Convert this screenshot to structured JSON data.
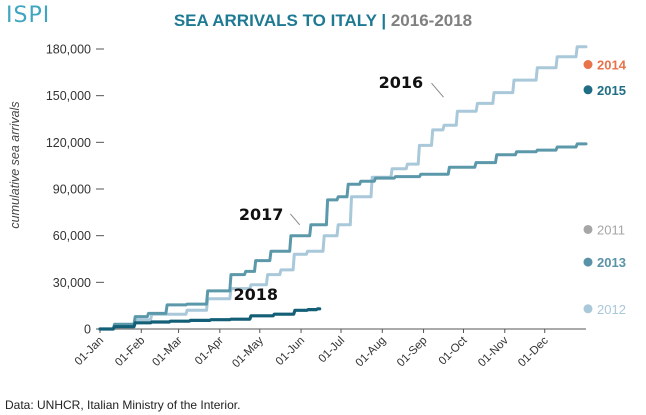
{
  "logo": "ISPI",
  "title": {
    "main": "SEA ARRIVALS TO ITALY",
    "separator": "|",
    "sub": "2016-2018"
  },
  "source": "Data: UNHCR, Italian Ministry of the Interior.",
  "colors": {
    "y2016": "#a9c8da",
    "y2017": "#5b98aa",
    "y2018": "#135f77",
    "legend2014": "#e8734a",
    "legend2015": "#1f6e85",
    "legend2011": "#a6a6a6",
    "legend2013": "#5a93a8",
    "legend2012": "#a9c8da",
    "axis": "#555555",
    "grid": "#dddddd"
  },
  "chart_data": {
    "type": "line",
    "title": "SEA ARRIVALS TO ITALY | 2016-2018",
    "xlabel": "",
    "ylabel": "cumulative sea arrivals",
    "x_tick_labels": [
      "01-Jan",
      "01-Feb",
      "01-Mar",
      "01-Apr",
      "01-May",
      "01-Jun",
      "01-Jul",
      "01-Aug",
      "01-Sep",
      "01-Oct",
      "01-Nov",
      "01-Dec"
    ],
    "ylim": [
      0,
      180000
    ],
    "y_ticks": [
      0,
      30000,
      60000,
      90000,
      120000,
      150000,
      180000
    ],
    "y_tick_labels": [
      "0",
      "30,000",
      "60,000",
      "90,000",
      "120,000",
      "150,000",
      "180,000"
    ],
    "grid": false,
    "series": [
      {
        "name": "2016",
        "label": "2016",
        "x": [
          0,
          20,
          31,
          45,
          59,
          70,
          90,
          105,
          120,
          130,
          140,
          150,
          160,
          175,
          181,
          195,
          212,
          225,
          235,
          243,
          255,
          260,
          275,
          290,
          300,
          320,
          335,
          350,
          365
        ],
        "y": [
          0,
          2000,
          6000,
          9500,
          9500,
          12000,
          19500,
          26000,
          28500,
          35000,
          38000,
          48000,
          50000,
          60000,
          67000,
          85000,
          97500,
          103000,
          106000,
          118000,
          128000,
          131000,
          140000,
          145000,
          152000,
          160000,
          168000,
          175000,
          181500
        ]
      },
      {
        "name": "2017",
        "label": "2017",
        "x": [
          0,
          20,
          31,
          40,
          59,
          70,
          90,
          105,
          112,
          120,
          135,
          150,
          165,
          175,
          181,
          190,
          200,
          212,
          230,
          250,
          273,
          290,
          304,
          320,
          335,
          350,
          365
        ],
        "y": [
          0,
          3000,
          8000,
          10000,
          15500,
          16000,
          24500,
          35000,
          37000,
          44000,
          50000,
          60000,
          67000,
          83000,
          85000,
          93000,
          95000,
          97000,
          98000,
          99500,
          104000,
          107000,
          112000,
          114000,
          115000,
          117000,
          119000
        ]
      },
      {
        "name": "2018",
        "label": "2018",
        "x": [
          0,
          20,
          31,
          45,
          59,
          75,
          90,
          105,
          120,
          140,
          151,
          160,
          165
        ],
        "y": [
          0,
          1500,
          4000,
          4500,
          5000,
          5500,
          6000,
          6300,
          8500,
          9500,
          12000,
          12500,
          13000
        ]
      }
    ],
    "legend": [
      {
        "label": "2014",
        "value": 170000
      },
      {
        "label": "2015",
        "value": 153800
      },
      {
        "label": "2011",
        "value": 64000
      },
      {
        "label": "2013",
        "value": 43000
      },
      {
        "label": "2012",
        "value": 13000
      }
    ]
  }
}
